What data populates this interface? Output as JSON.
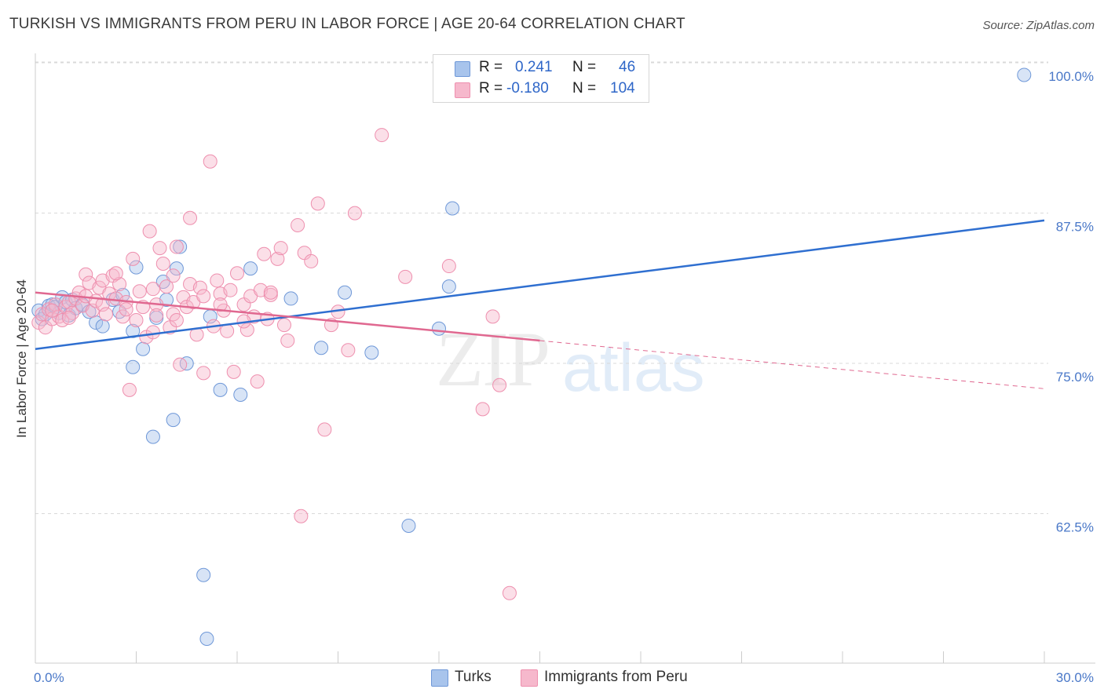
{
  "header": {
    "title": "TURKISH VS IMMIGRANTS FROM PERU IN LABOR FORCE | AGE 20-64 CORRELATION CHART",
    "source": "Source: ZipAtlas.com"
  },
  "watermark": {
    "zip": "ZIP",
    "atlas": "atlas"
  },
  "legend": {
    "series1": {
      "r_label": "R =",
      "r_value": "0.241",
      "n_label": "N =",
      "n_value": "46"
    },
    "series2": {
      "r_label": "R =",
      "r_value": "-0.180",
      "n_label": "N =",
      "n_value": "104"
    }
  },
  "bottom_legend": {
    "series1": "Turks",
    "series2": "Immigrants from Peru"
  },
  "colors": {
    "turks_fill": "#a8c4ec",
    "turks_stroke": "#6f98d8",
    "turks_line": "#2f6fd0",
    "peru_fill": "#f6b8cc",
    "peru_stroke": "#ee8fae",
    "peru_line": "#e06890",
    "grid": "#d9d9d9",
    "tick_label": "#4a78c8"
  },
  "chart_data": {
    "type": "scatter",
    "title": "TURKISH VS IMMIGRANTS FROM PERU IN LABOR FORCE | AGE 20-64 CORRELATION CHART",
    "xlabel": "",
    "ylabel": "In Labor Force | Age 20-64",
    "xlim": [
      0,
      30
    ],
    "ylim": [
      50,
      101
    ],
    "x_tick_labels": [
      "0.0%",
      "30.0%"
    ],
    "y_ticks": [
      62.5,
      75.0,
      87.5,
      100.0
    ],
    "y_tick_labels": [
      "62.5%",
      "75.0%",
      "87.5%",
      "100.0%"
    ],
    "grid": true,
    "legend_position": "top-center",
    "series": [
      {
        "name": "Turks",
        "r": 0.241,
        "n": 46,
        "trend": {
          "x": [
            0,
            30
          ],
          "y": [
            77.3,
            88.0
          ],
          "dashed_after": null
        },
        "points": [
          [
            0.1,
            80.5
          ],
          [
            0.2,
            79.8
          ],
          [
            0.3,
            80.2
          ],
          [
            0.4,
            80.9
          ],
          [
            0.5,
            81.0
          ],
          [
            0.6,
            80.8
          ],
          [
            0.7,
            80.3
          ],
          [
            0.8,
            81.6
          ],
          [
            0.9,
            81.2
          ],
          [
            1.0,
            80.1
          ],
          [
            1.1,
            81.4
          ],
          [
            1.2,
            80.7
          ],
          [
            1.4,
            81.0
          ],
          [
            1.6,
            80.4
          ],
          [
            1.8,
            79.5
          ],
          [
            2.0,
            79.2
          ],
          [
            2.3,
            81.4
          ],
          [
            2.5,
            80.4
          ],
          [
            2.6,
            81.8
          ],
          [
            2.9,
            75.8
          ],
          [
            2.9,
            78.8
          ],
          [
            3.0,
            84.1
          ],
          [
            3.2,
            77.3
          ],
          [
            3.5,
            70.0
          ],
          [
            3.6,
            79.9
          ],
          [
            3.8,
            82.9
          ],
          [
            3.9,
            81.4
          ],
          [
            4.1,
            71.4
          ],
          [
            4.2,
            84.0
          ],
          [
            4.3,
            85.8
          ],
          [
            4.5,
            76.1
          ],
          [
            5.0,
            58.5
          ],
          [
            5.1,
            53.2
          ],
          [
            5.2,
            80.0
          ],
          [
            5.5,
            73.9
          ],
          [
            6.1,
            73.5
          ],
          [
            6.4,
            84.0
          ],
          [
            7.6,
            81.5
          ],
          [
            8.5,
            77.4
          ],
          [
            9.2,
            82.0
          ],
          [
            10.0,
            77.0
          ],
          [
            11.1,
            62.6
          ],
          [
            12.0,
            79.0
          ],
          [
            12.3,
            82.5
          ],
          [
            12.4,
            89.0
          ],
          [
            29.4,
            100.1
          ]
        ]
      },
      {
        "name": "Immigrants from Peru",
        "r": -0.18,
        "n": 104,
        "trend": {
          "x": [
            0,
            15,
            30
          ],
          "y": [
            82.0,
            78.0,
            74.0
          ],
          "dashed_after": 15
        },
        "points": [
          [
            0.1,
            79.5
          ],
          [
            0.2,
            80.2
          ],
          [
            0.3,
            79.1
          ],
          [
            0.4,
            80.6
          ],
          [
            0.5,
            79.8
          ],
          [
            0.6,
            81.0
          ],
          [
            0.7,
            80.0
          ],
          [
            0.8,
            79.7
          ],
          [
            0.9,
            80.8
          ],
          [
            1.0,
            81.2
          ],
          [
            1.1,
            80.3
          ],
          [
            1.2,
            81.5
          ],
          [
            1.3,
            82.0
          ],
          [
            1.4,
            80.9
          ],
          [
            1.5,
            81.7
          ],
          [
            1.5,
            83.5
          ],
          [
            1.6,
            82.8
          ],
          [
            1.7,
            80.5
          ],
          [
            1.8,
            81.3
          ],
          [
            1.9,
            82.4
          ],
          [
            2.0,
            81.0
          ],
          [
            2.0,
            83.0
          ],
          [
            2.1,
            80.2
          ],
          [
            2.2,
            81.9
          ],
          [
            2.3,
            83.4
          ],
          [
            2.4,
            81.5
          ],
          [
            2.5,
            82.7
          ],
          [
            2.6,
            80.0
          ],
          [
            2.7,
            81.2
          ],
          [
            2.7,
            80.6
          ],
          [
            2.8,
            73.9
          ],
          [
            2.9,
            84.8
          ],
          [
            3.0,
            79.7
          ],
          [
            3.1,
            82.1
          ],
          [
            3.2,
            80.8
          ],
          [
            3.3,
            78.3
          ],
          [
            3.4,
            87.1
          ],
          [
            3.5,
            82.3
          ],
          [
            3.5,
            78.7
          ],
          [
            3.6,
            81.0
          ],
          [
            3.7,
            85.7
          ],
          [
            3.8,
            84.4
          ],
          [
            3.9,
            82.5
          ],
          [
            4.0,
            79.1
          ],
          [
            4.1,
            80.2
          ],
          [
            4.2,
            79.7
          ],
          [
            4.2,
            85.8
          ],
          [
            4.3,
            76.0
          ],
          [
            4.4,
            81.6
          ],
          [
            4.5,
            80.8
          ],
          [
            4.6,
            82.7
          ],
          [
            4.6,
            88.2
          ],
          [
            4.7,
            81.2
          ],
          [
            4.8,
            78.5
          ],
          [
            4.9,
            82.4
          ],
          [
            5.0,
            81.7
          ],
          [
            5.0,
            75.3
          ],
          [
            5.2,
            92.9
          ],
          [
            5.3,
            79.2
          ],
          [
            5.4,
            83.0
          ],
          [
            5.5,
            81.9
          ],
          [
            5.6,
            80.5
          ],
          [
            5.7,
            78.8
          ],
          [
            5.8,
            82.2
          ],
          [
            5.9,
            75.4
          ],
          [
            6.0,
            83.6
          ],
          [
            6.2,
            81.0
          ],
          [
            6.3,
            78.9
          ],
          [
            6.4,
            81.7
          ],
          [
            6.5,
            80.0
          ],
          [
            6.6,
            74.6
          ],
          [
            6.7,
            82.2
          ],
          [
            6.8,
            85.2
          ],
          [
            6.9,
            79.8
          ],
          [
            7.0,
            81.8
          ],
          [
            7.2,
            84.8
          ],
          [
            7.3,
            85.7
          ],
          [
            7.4,
            79.3
          ],
          [
            7.5,
            78.0
          ],
          [
            7.8,
            87.6
          ],
          [
            7.9,
            63.4
          ],
          [
            8.0,
            85.3
          ],
          [
            8.2,
            84.6
          ],
          [
            8.4,
            89.4
          ],
          [
            8.6,
            70.6
          ],
          [
            8.8,
            79.3
          ],
          [
            9.0,
            80.4
          ],
          [
            9.3,
            77.2
          ],
          [
            9.5,
            88.6
          ],
          [
            10.3,
            95.1
          ],
          [
            11.0,
            83.3
          ],
          [
            12.3,
            84.2
          ],
          [
            13.3,
            72.3
          ],
          [
            13.6,
            80.0
          ],
          [
            13.8,
            74.3
          ],
          [
            14.1,
            57.0
          ],
          [
            0.5,
            80.5
          ],
          [
            1.0,
            79.9
          ],
          [
            2.4,
            83.6
          ],
          [
            3.6,
            80.1
          ],
          [
            4.1,
            83.4
          ],
          [
            5.5,
            81.0
          ],
          [
            6.2,
            79.6
          ],
          [
            7.0,
            82.0
          ]
        ]
      }
    ]
  }
}
